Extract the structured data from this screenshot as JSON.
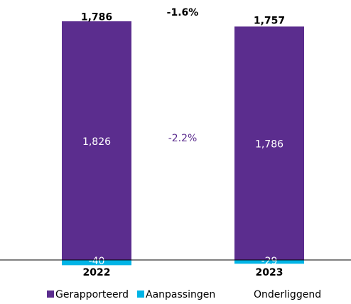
{
  "chart_data": {
    "type": "stacked_bar",
    "categories": [
      "2022",
      "2023"
    ],
    "series": [
      {
        "name": "Gerapporteerd",
        "color": "#5b2d8e",
        "values": [
          1826,
          1786
        ],
        "value_labels": [
          "1,826",
          "1,786"
        ]
      },
      {
        "name": "Aanpassingen",
        "color": "#00b4e6",
        "values": [
          -40,
          -29
        ],
        "value_labels": [
          "-40",
          "-29"
        ]
      },
      {
        "name": "Onderliggend",
        "values": [
          1786,
          1757
        ],
        "value_labels": [
          "1,786",
          "1,757"
        ]
      }
    ],
    "annotations": [
      {
        "text": "-1.6%",
        "color": "#000000"
      },
      {
        "text": "-2.2%",
        "color": "#5b2d8e"
      }
    ]
  }
}
